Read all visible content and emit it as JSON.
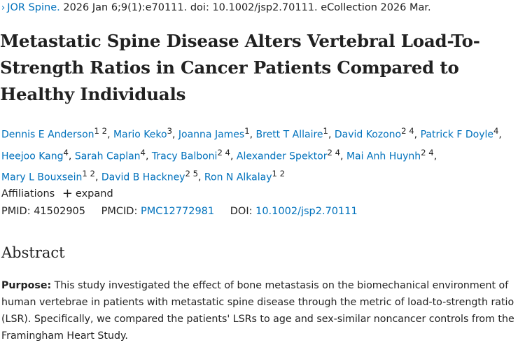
{
  "citation": {
    "chevron": "›",
    "journal": "JOR Spine.",
    "details": " 2026 Jan 6;9(1):e70111. doi: 10.1002/jsp2.70111. eCollection 2026 Mar."
  },
  "title": "Metastatic Spine Disease Alters Vertebral Load-To-Strength Ratios in Cancer Patients Compared to Healthy Individuals",
  "authors": [
    {
      "name": "Dennis E Anderson",
      "sup": "1 2"
    },
    {
      "name": "Mario Keko",
      "sup": "3"
    },
    {
      "name": "Joanna James",
      "sup": "1"
    },
    {
      "name": "Brett T Allaire",
      "sup": "1"
    },
    {
      "name": "David Kozono",
      "sup": "2 4"
    },
    {
      "name": "Patrick F Doyle",
      "sup": "4"
    },
    {
      "name": "Heejoo Kang",
      "sup": "4"
    },
    {
      "name": "Sarah Caplan",
      "sup": "4"
    },
    {
      "name": "Tracy Balboni",
      "sup": "2 4"
    },
    {
      "name": "Alexander Spektor",
      "sup": "2 4"
    },
    {
      "name": "Mai Anh Huynh",
      "sup": "2 4"
    },
    {
      "name": "Mary L Bouxsein",
      "sup": "1 2"
    },
    {
      "name": "David B Hackney",
      "sup": "2 5"
    },
    {
      "name": "Ron N Alkalay",
      "sup": "1 2"
    }
  ],
  "affiliations": {
    "label": "Affiliations",
    "toggle_icon": "+",
    "toggle_label": "expand"
  },
  "ids": {
    "pmid_label": "PMID:",
    "pmid": "41502905",
    "pmcid_label": "PMCID:",
    "pmcid": "PMC12772981",
    "doi_label": "DOI:",
    "doi": "10.1002/jsp2.70111"
  },
  "abstract": {
    "heading": "Abstract",
    "purpose_label": "Purpose:",
    "purpose_text": " This study investigated the effect of bone metastasis on the biomechanical environment of human vertebrae in patients with metastatic spine disease through the metric of load-to-strength ratio (LSR). Specifically, we compared the patients' LSRs to age and sex-similar noncancer controls from the Framingham Heart Study."
  },
  "colors": {
    "link": "#0071bc",
    "text": "#212121"
  }
}
